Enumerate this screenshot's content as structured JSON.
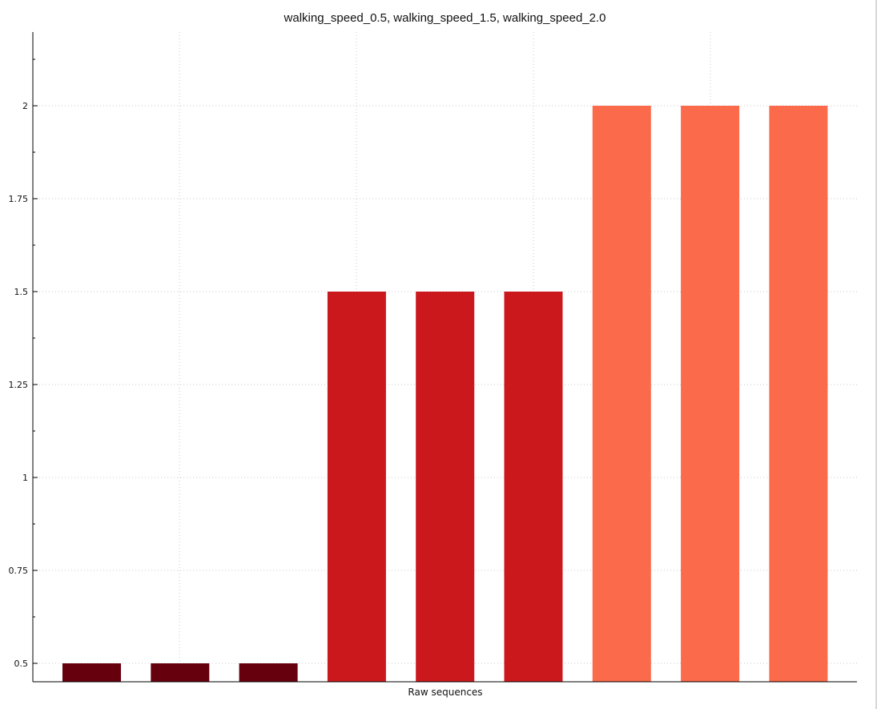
{
  "chart_data": {
    "type": "bar",
    "title": "walking_speed_0.5, walking_speed_1.5, walking_speed_2.0",
    "xlabel": "Raw sequences",
    "ylabel": "",
    "ylim": [
      0.45,
      2.2
    ],
    "yticks": [
      0.5,
      0.75,
      1,
      1.25,
      1.5,
      1.75,
      2
    ],
    "ytick_labels": [
      "0.5",
      "0.75",
      "1",
      "1.25",
      "1.5",
      "1.75",
      "2"
    ],
    "grid": true,
    "legend": false,
    "bars": [
      {
        "value": 0.5,
        "color": "#67000d"
      },
      {
        "value": 0.5,
        "color": "#67000d"
      },
      {
        "value": 0.5,
        "color": "#67000d"
      },
      {
        "value": 1.5,
        "color": "#cb181d"
      },
      {
        "value": 1.5,
        "color": "#cb181d"
      },
      {
        "value": 1.5,
        "color": "#cb181d"
      },
      {
        "value": 2.0,
        "color": "#fb6a4a"
      },
      {
        "value": 2.0,
        "color": "#fb6a4a"
      },
      {
        "value": 2.0,
        "color": "#fb6a4a"
      }
    ]
  }
}
